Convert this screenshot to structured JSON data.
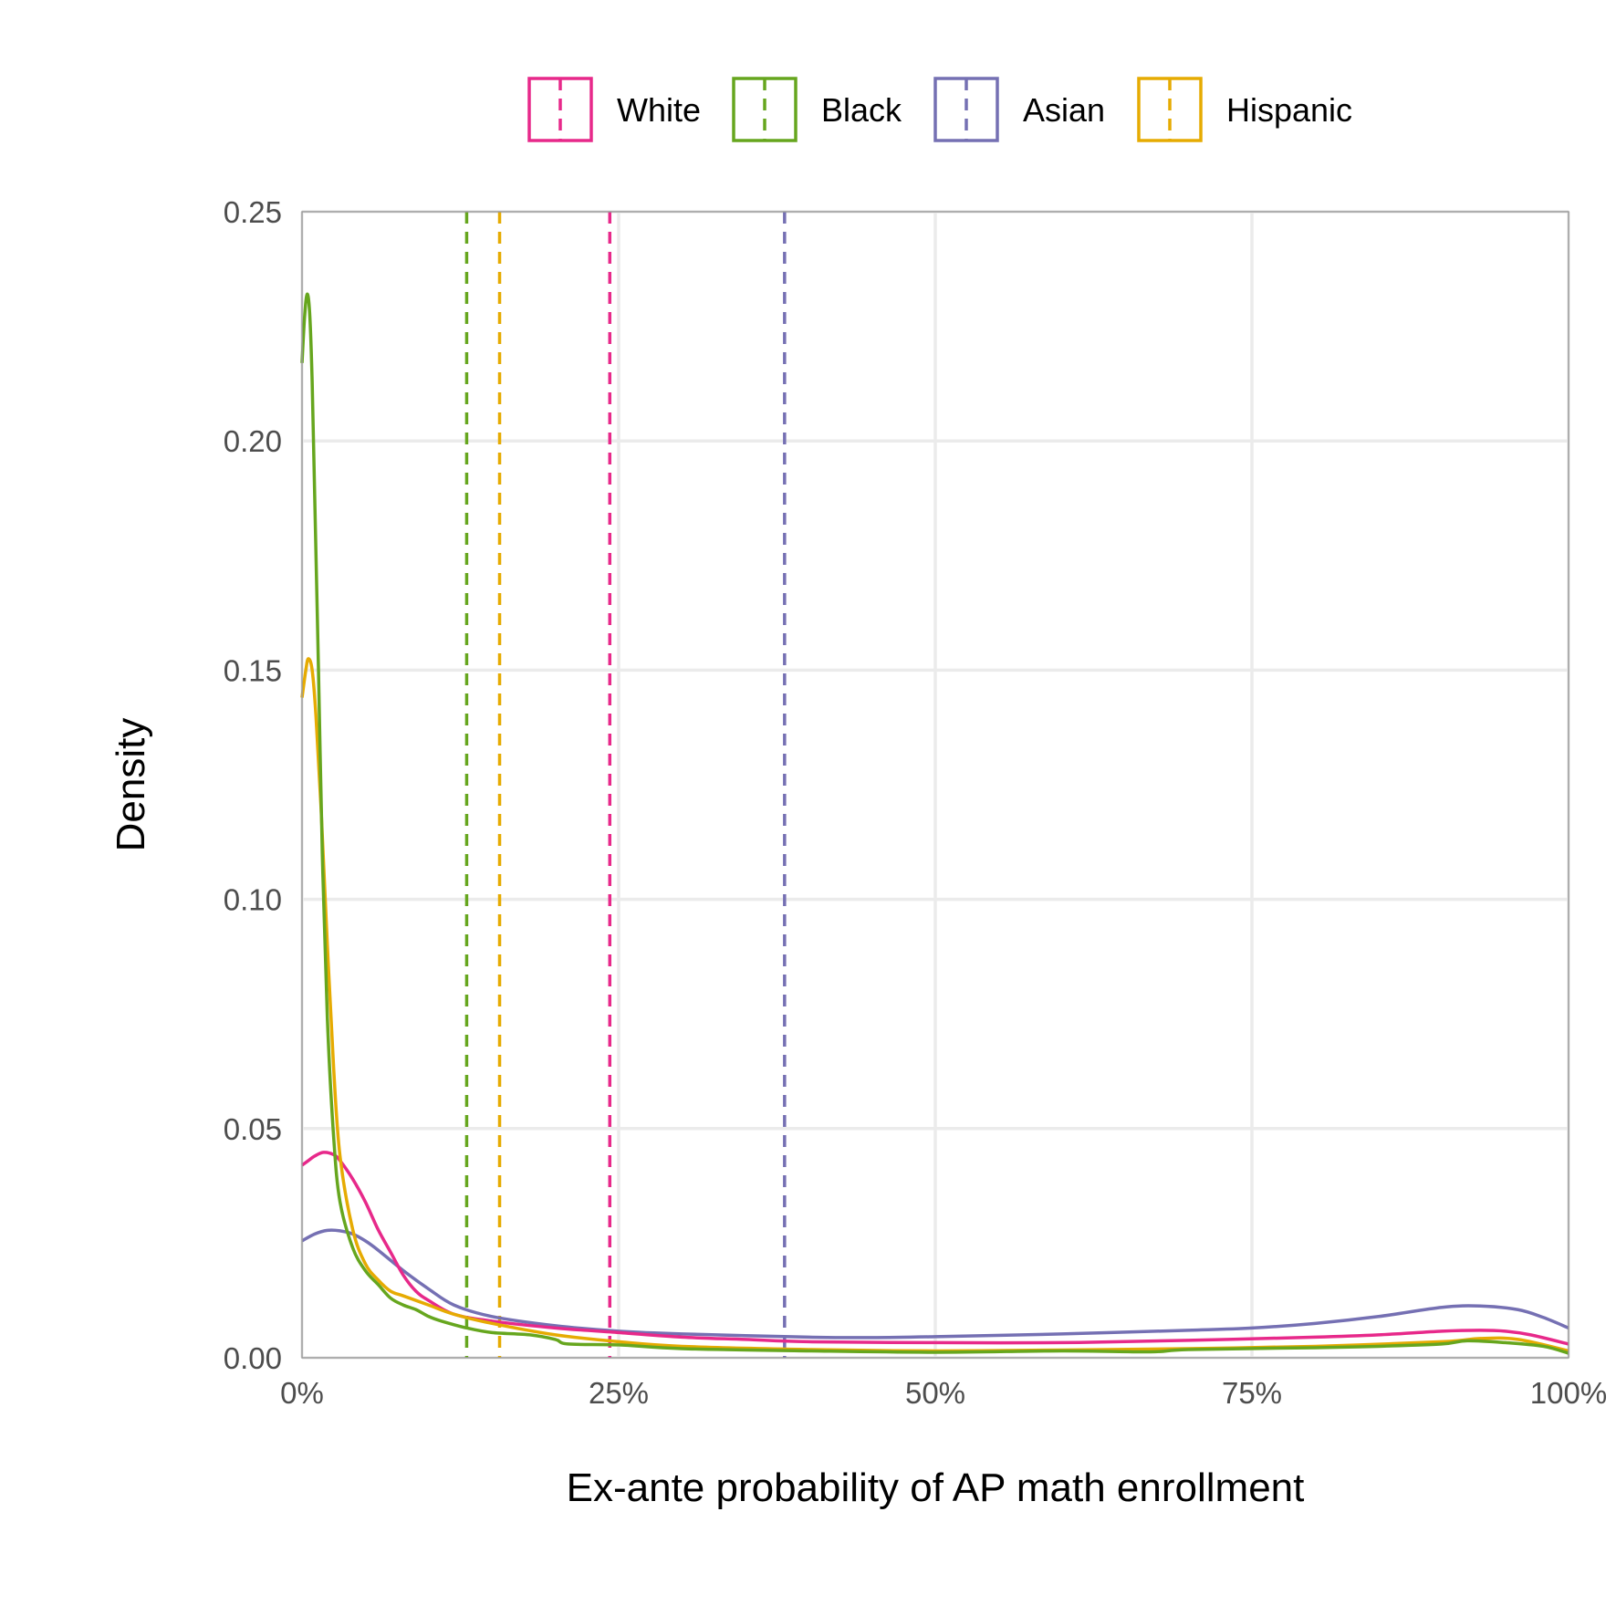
{
  "chart_data": {
    "type": "line",
    "xlabel": "Ex-ante probability of AP math enrollment",
    "ylabel": "Density",
    "xlim": [
      0,
      1
    ],
    "ylim": [
      0,
      0.25
    ],
    "x_ticks": [
      0,
      0.25,
      0.5,
      0.75,
      1.0
    ],
    "x_tick_labels": [
      "0%",
      "25%",
      "50%",
      "75%",
      "100%"
    ],
    "y_ticks": [
      0,
      0.05,
      0.1,
      0.15,
      0.2,
      0.25
    ],
    "y_tick_labels": [
      "0.00",
      "0.05",
      "0.10",
      "0.15",
      "0.20",
      "0.25"
    ],
    "grid": true,
    "legend_position": "top",
    "series": [
      {
        "name": "White",
        "color": "#e7298a",
        "mean": 0.243,
        "points": [
          [
            0,
            0.042
          ],
          [
            0.005,
            0.043
          ],
          [
            0.01,
            0.044
          ],
          [
            0.017,
            0.0448
          ],
          [
            0.025,
            0.0443
          ],
          [
            0.03,
            0.043
          ],
          [
            0.04,
            0.039
          ],
          [
            0.05,
            0.034
          ],
          [
            0.06,
            0.028
          ],
          [
            0.07,
            0.023
          ],
          [
            0.08,
            0.018
          ],
          [
            0.09,
            0.0145
          ],
          [
            0.1,
            0.0125
          ],
          [
            0.12,
            0.0095
          ],
          [
            0.15,
            0.008
          ],
          [
            0.2,
            0.0065
          ],
          [
            0.25,
            0.0055
          ],
          [
            0.3,
            0.0045
          ],
          [
            0.35,
            0.004
          ],
          [
            0.4,
            0.0035
          ],
          [
            0.5,
            0.0033
          ],
          [
            0.6,
            0.0033
          ],
          [
            0.7,
            0.0038
          ],
          [
            0.8,
            0.0045
          ],
          [
            0.85,
            0.005
          ],
          [
            0.9,
            0.0058
          ],
          [
            0.93,
            0.006
          ],
          [
            0.95,
            0.0058
          ],
          [
            0.97,
            0.005
          ],
          [
            1.0,
            0.003
          ]
        ]
      },
      {
        "name": "Black",
        "color": "#66a61e",
        "mean": 0.13,
        "points": [
          [
            0,
            0.217
          ],
          [
            0.002,
            0.227
          ],
          [
            0.004,
            0.232
          ],
          [
            0.006,
            0.228
          ],
          [
            0.008,
            0.213
          ],
          [
            0.01,
            0.188
          ],
          [
            0.013,
            0.15
          ],
          [
            0.016,
            0.11
          ],
          [
            0.02,
            0.074
          ],
          [
            0.025,
            0.048
          ],
          [
            0.03,
            0.034
          ],
          [
            0.04,
            0.024
          ],
          [
            0.05,
            0.019
          ],
          [
            0.06,
            0.016
          ],
          [
            0.07,
            0.013
          ],
          [
            0.08,
            0.0115
          ],
          [
            0.09,
            0.0105
          ],
          [
            0.1,
            0.009
          ],
          [
            0.11,
            0.008
          ],
          [
            0.13,
            0.0065
          ],
          [
            0.15,
            0.0055
          ],
          [
            0.18,
            0.005
          ],
          [
            0.2,
            0.004
          ],
          [
            0.21,
            0.003
          ],
          [
            0.25,
            0.0028
          ],
          [
            0.3,
            0.002
          ],
          [
            0.4,
            0.0015
          ],
          [
            0.5,
            0.0012
          ],
          [
            0.6,
            0.0015
          ],
          [
            0.67,
            0.0013
          ],
          [
            0.7,
            0.0018
          ],
          [
            0.8,
            0.0022
          ],
          [
            0.85,
            0.0025
          ],
          [
            0.9,
            0.003
          ],
          [
            0.92,
            0.0037
          ],
          [
            0.95,
            0.0033
          ],
          [
            0.98,
            0.0025
          ],
          [
            1.0,
            0.001
          ]
        ]
      },
      {
        "name": "Asian",
        "color": "#7570b3",
        "mean": 0.381,
        "points": [
          [
            0,
            0.0255
          ],
          [
            0.01,
            0.027
          ],
          [
            0.02,
            0.0278
          ],
          [
            0.03,
            0.0277
          ],
          [
            0.04,
            0.027
          ],
          [
            0.05,
            0.0255
          ],
          [
            0.06,
            0.0235
          ],
          [
            0.08,
            0.019
          ],
          [
            0.1,
            0.015
          ],
          [
            0.12,
            0.0115
          ],
          [
            0.15,
            0.009
          ],
          [
            0.2,
            0.007
          ],
          [
            0.25,
            0.0058
          ],
          [
            0.3,
            0.0052
          ],
          [
            0.4,
            0.0045
          ],
          [
            0.45,
            0.0044
          ],
          [
            0.5,
            0.0046
          ],
          [
            0.6,
            0.0052
          ],
          [
            0.7,
            0.006
          ],
          [
            0.75,
            0.0065
          ],
          [
            0.8,
            0.0075
          ],
          [
            0.85,
            0.009
          ],
          [
            0.9,
            0.011
          ],
          [
            0.93,
            0.0113
          ],
          [
            0.96,
            0.0105
          ],
          [
            0.98,
            0.0088
          ],
          [
            1.0,
            0.0065
          ]
        ]
      },
      {
        "name": "Hispanic",
        "color": "#e6ab02",
        "mean": 0.156,
        "points": [
          [
            0,
            0.144
          ],
          [
            0.003,
            0.15
          ],
          [
            0.005,
            0.1525
          ],
          [
            0.008,
            0.15
          ],
          [
            0.011,
            0.14
          ],
          [
            0.015,
            0.12
          ],
          [
            0.02,
            0.09
          ],
          [
            0.025,
            0.063
          ],
          [
            0.03,
            0.044
          ],
          [
            0.04,
            0.028
          ],
          [
            0.05,
            0.0205
          ],
          [
            0.06,
            0.017
          ],
          [
            0.07,
            0.0145
          ],
          [
            0.08,
            0.0135
          ],
          [
            0.1,
            0.0115
          ],
          [
            0.12,
            0.0095
          ],
          [
            0.15,
            0.0075
          ],
          [
            0.2,
            0.005
          ],
          [
            0.25,
            0.0035
          ],
          [
            0.3,
            0.0025
          ],
          [
            0.4,
            0.0018
          ],
          [
            0.5,
            0.0015
          ],
          [
            0.6,
            0.0017
          ],
          [
            0.7,
            0.002
          ],
          [
            0.8,
            0.0025
          ],
          [
            0.9,
            0.0035
          ],
          [
            0.93,
            0.0042
          ],
          [
            0.96,
            0.004
          ],
          [
            1.0,
            0.0015
          ]
        ]
      }
    ]
  }
}
